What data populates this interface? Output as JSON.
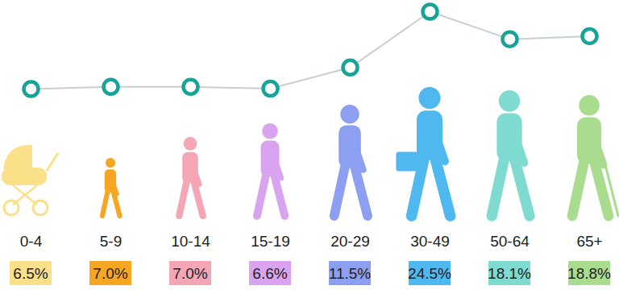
{
  "chart_data": {
    "type": "line",
    "categories": [
      "0-4",
      "5-9",
      "10-14",
      "15-19",
      "20-29",
      "30-49",
      "50-64",
      "65+"
    ],
    "values": [
      6.5,
      7.0,
      7.0,
      6.6,
      11.5,
      24.5,
      18.1,
      18.8
    ],
    "value_labels": [
      "6.5%",
      "7.0%",
      "7.0%",
      "6.6%",
      "11.5%",
      "24.5%",
      "18.1%",
      "18.8%"
    ],
    "data_labels": true,
    "color": "#17a398",
    "colors": [
      "#fbe08a",
      "#f6a623",
      "#f4a6b5",
      "#d9a3f0",
      "#8d9ff0",
      "#4fb8ef",
      "#7fdbd0",
      "#a9dc8f"
    ],
    "marker": "circle",
    "ylim": [
      6.5,
      24.5
    ],
    "tick_labels": "x",
    "grid": false
  }
}
